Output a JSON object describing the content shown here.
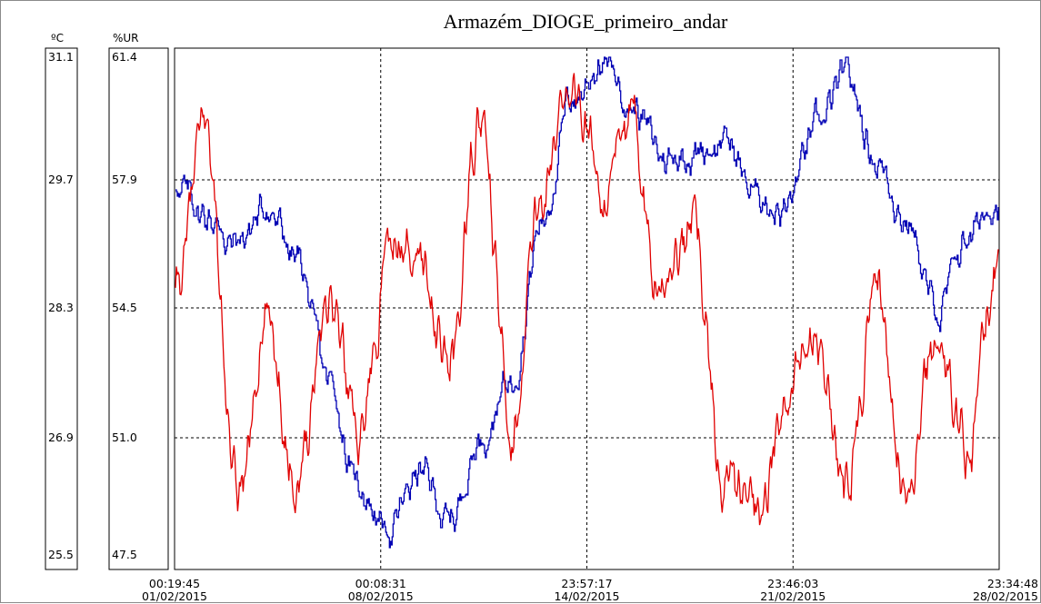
{
  "chart_data": {
    "type": "line",
    "title": "Armazém_DIOGE_primeiro_andar",
    "left_axis": {
      "unit": "ºC",
      "ticks": [
        "31.1",
        "29.7",
        "28.3",
        "26.9",
        "25.5"
      ],
      "range": [
        25.5,
        31.1
      ]
    },
    "right_axis": {
      "unit": "%UR",
      "ticks": [
        "61.4",
        "57.9",
        "54.5",
        "51.0",
        "47.5"
      ],
      "range": [
        47.5,
        61.4
      ]
    },
    "x_axis": {
      "ticks": [
        {
          "time": "00:19:45",
          "date": "01/02/2015"
        },
        {
          "time": "00:08:31",
          "date": "08/02/2015"
        },
        {
          "time": "23:57:17",
          "date": "14/02/2015"
        },
        {
          "time": "23:46:03",
          "date": "21/02/2015"
        },
        {
          "time": "23:34:48",
          "date": "28/02/2015"
        }
      ]
    },
    "grid": true,
    "series": [
      {
        "axis": "right",
        "color": "#0000b4",
        "x": [
          "01/02",
          "02/02",
          "03/02",
          "04/02",
          "05/02",
          "06/02",
          "07/02",
          "08/02",
          "09/02",
          "10/02",
          "11/02",
          "12/02",
          "13/02",
          "14/02",
          "15/02",
          "16/02",
          "17/02",
          "18/02",
          "19/02",
          "20/02",
          "21/02",
          "22/02",
          "23/02",
          "24/02",
          "25/02",
          "26/02",
          "27/02",
          "28/02"
        ],
        "values": [
          57.8,
          57.0,
          56.2,
          57.2,
          55.7,
          52.3,
          49.4,
          48.2,
          49.8,
          48.4,
          50.8,
          52.4,
          56.8,
          60.2,
          61.3,
          60.1,
          58.6,
          58.8,
          59.1,
          57.6,
          57.2,
          59.3,
          60.7,
          58.6,
          56.9,
          54.2,
          56.4,
          57.6
        ]
      },
      {
        "axis": "left",
        "color": "#e00000",
        "x": [
          "01/02",
          "02/02",
          "03/02",
          "04/02",
          "05/02",
          "06/02",
          "07/02",
          "08/02",
          "09/02",
          "10/02",
          "11/02",
          "12/02",
          "13/02",
          "14/02",
          "15/02",
          "16/02",
          "17/02",
          "18/02",
          "19/02",
          "20/02",
          "21/02",
          "22/02",
          "23/02",
          "24/02",
          "25/02",
          "26/02",
          "27/02",
          "28/02"
        ],
        "values": [
          28.4,
          30.3,
          26.1,
          28.1,
          26.4,
          28.5,
          27.0,
          28.8,
          28.9,
          27.6,
          30.4,
          27.0,
          29.5,
          30.9,
          29.6,
          30.2,
          28.6,
          29.2,
          26.3,
          26.1,
          27.0,
          28.2,
          26.3,
          28.4,
          26.1,
          27.9,
          26.8,
          28.6
        ]
      }
    ]
  }
}
